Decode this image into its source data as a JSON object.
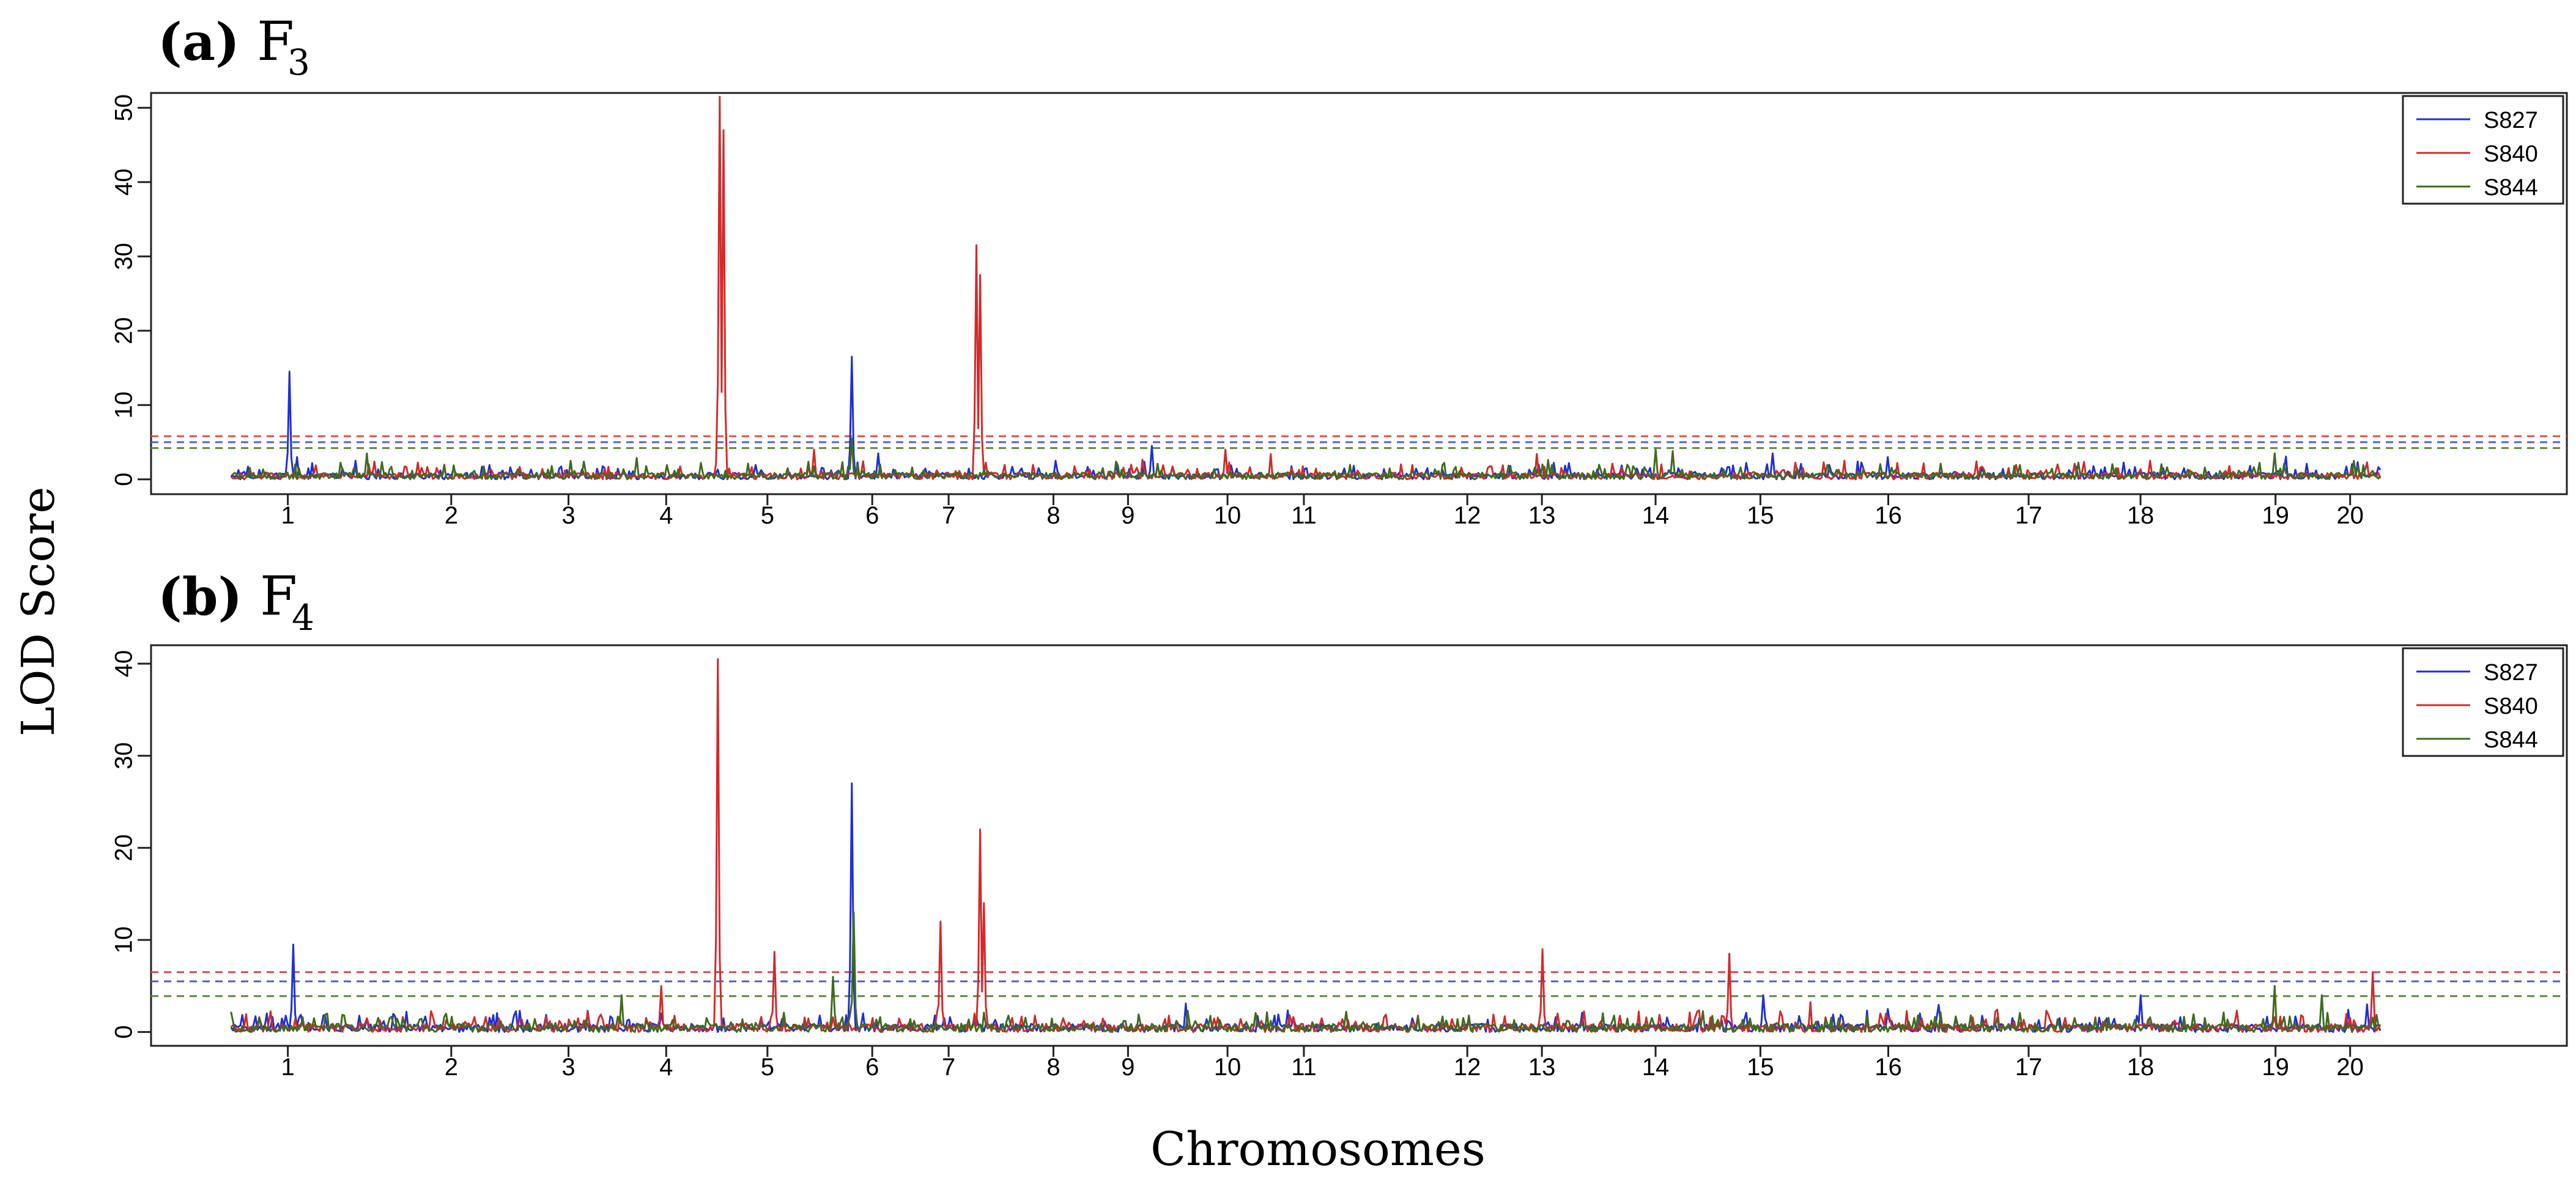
{
  "figure": {
    "ylabel": "LOD Score",
    "xlabel": "Chromosomes"
  },
  "chart_data": [
    {
      "type": "line",
      "panel_label": "(a)",
      "title": "F",
      "title_sub": "3",
      "xlabel": "Chromosomes",
      "ylabel": "LOD Score",
      "xlim": [
        0,
        1360
      ],
      "ylim": [
        -2,
        52
      ],
      "yticks": [
        0,
        10,
        20,
        30,
        40,
        50
      ],
      "chromosome_ticks": [
        {
          "label": "1",
          "x": 77
        },
        {
          "label": "2",
          "x": 169
        },
        {
          "label": "3",
          "x": 235
        },
        {
          "label": "4",
          "x": 290
        },
        {
          "label": "5",
          "x": 347
        },
        {
          "label": "6",
          "x": 406
        },
        {
          "label": "7",
          "x": 449
        },
        {
          "label": "8",
          "x": 508
        },
        {
          "label": "9",
          "x": 550
        },
        {
          "label": "10",
          "x": 606
        },
        {
          "label": "11",
          "x": 649
        },
        {
          "label": "12",
          "x": 741
        },
        {
          "label": "13",
          "x": 783
        },
        {
          "label": "14",
          "x": 847
        },
        {
          "label": "15",
          "x": 906
        },
        {
          "label": "16",
          "x": 978
        },
        {
          "label": "17",
          "x": 1057
        },
        {
          "label": "18",
          "x": 1120
        },
        {
          "label": "19",
          "x": 1196
        },
        {
          "label": "20",
          "x": 1238
        }
      ],
      "thresholds": [
        {
          "series": "S840",
          "value": 5.8,
          "color": "#e0504f"
        },
        {
          "series": "S827",
          "value": 5.0,
          "color": "#5560d6"
        },
        {
          "series": "S844",
          "value": 4.2,
          "color": "#5a8a3c"
        }
      ],
      "legend_position": "top-right",
      "series": [
        {
          "name": "S827",
          "color": "#1f2fd8",
          "peaks": [
            {
              "x": 78,
              "y": 14.5
            },
            {
              "x": 82,
              "y": 3
            },
            {
              "x": 115,
              "y": 2.5
            },
            {
              "x": 395,
              "y": 16.5
            },
            {
              "x": 409,
              "y": 3.5
            },
            {
              "x": 509,
              "y": 2.5
            },
            {
              "x": 563,
              "y": 4.5
            },
            {
              "x": 913,
              "y": 3.5
            },
            {
              "x": 978,
              "y": 3
            },
            {
              "x": 1145,
              "y": 1.5
            }
          ]
        },
        {
          "name": "S840",
          "color": "#d42a2a",
          "peaks": [
            {
              "x": 320,
              "y": 51.5
            },
            {
              "x": 322,
              "y": 47
            },
            {
              "x": 465,
              "y": 31.5
            },
            {
              "x": 467,
              "y": 27.5
            },
            {
              "x": 373,
              "y": 4
            },
            {
              "x": 605,
              "y": 4
            },
            {
              "x": 1125,
              "y": 2.5
            },
            {
              "x": 1245,
              "y": 1.5
            }
          ]
        },
        {
          "name": "S844",
          "color": "#3f6b1e",
          "peaks": [
            {
              "x": 122,
              "y": 3.5
            },
            {
              "x": 236,
              "y": 2.5
            },
            {
              "x": 395,
              "y": 5.5
            },
            {
              "x": 783,
              "y": 2
            },
            {
              "x": 847,
              "y": 4
            },
            {
              "x": 857,
              "y": 3.8
            },
            {
              "x": 1196,
              "y": 3.5
            },
            {
              "x": 1240,
              "y": 2.5
            }
          ]
        }
      ]
    },
    {
      "type": "line",
      "panel_label": "(b)",
      "title": "F",
      "title_sub": "4",
      "xlabel": "Chromosomes",
      "ylabel": "LOD Score",
      "xlim": [
        0,
        1360
      ],
      "ylim": [
        -1.5,
        42
      ],
      "yticks": [
        0,
        10,
        20,
        30,
        40
      ],
      "chromosome_ticks": [
        {
          "label": "1",
          "x": 77
        },
        {
          "label": "2",
          "x": 169
        },
        {
          "label": "3",
          "x": 235
        },
        {
          "label": "4",
          "x": 290
        },
        {
          "label": "5",
          "x": 347
        },
        {
          "label": "6",
          "x": 406
        },
        {
          "label": "7",
          "x": 449
        },
        {
          "label": "8",
          "x": 508
        },
        {
          "label": "9",
          "x": 550
        },
        {
          "label": "10",
          "x": 606
        },
        {
          "label": "11",
          "x": 649
        },
        {
          "label": "12",
          "x": 741
        },
        {
          "label": "13",
          "x": 783
        },
        {
          "label": "14",
          "x": 847
        },
        {
          "label": "15",
          "x": 906
        },
        {
          "label": "16",
          "x": 978
        },
        {
          "label": "17",
          "x": 1057
        },
        {
          "label": "18",
          "x": 1120
        },
        {
          "label": "19",
          "x": 1196
        },
        {
          "label": "20",
          "x": 1238
        }
      ],
      "thresholds": [
        {
          "series": "S840",
          "value": 6.5,
          "color": "#e0504f"
        },
        {
          "series": "S827",
          "value": 5.5,
          "color": "#5560d6"
        },
        {
          "series": "S844",
          "value": 3.9,
          "color": "#5a8a3c"
        }
      ],
      "legend_position": "top-right",
      "series": [
        {
          "name": "S827",
          "color": "#1f2fd8",
          "peaks": [
            {
              "x": 80,
              "y": 9.5
            },
            {
              "x": 394,
              "y": 27
            },
            {
              "x": 908,
              "y": 4
            },
            {
              "x": 978,
              "y": 2.5
            },
            {
              "x": 1120,
              "y": 4
            },
            {
              "x": 1248,
              "y": 3
            }
          ]
        },
        {
          "name": "S840",
          "color": "#d42a2a",
          "peaks": [
            {
              "x": 319,
              "y": 40.5
            },
            {
              "x": 351,
              "y": 8.7
            },
            {
              "x": 444,
              "y": 12
            },
            {
              "x": 467,
              "y": 22
            },
            {
              "x": 469,
              "y": 14
            },
            {
              "x": 287,
              "y": 5
            },
            {
              "x": 783,
              "y": 9
            },
            {
              "x": 888,
              "y": 8.5
            },
            {
              "x": 1251,
              "y": 6.5
            }
          ]
        },
        {
          "name": "S844",
          "color": "#3f6b1e",
          "peaks": [
            {
              "x": 396,
              "y": 13
            },
            {
              "x": 384,
              "y": 6
            },
            {
              "x": 265,
              "y": 4
            },
            {
              "x": 1196,
              "y": 5
            },
            {
              "x": 1222,
              "y": 4
            }
          ]
        }
      ]
    }
  ]
}
